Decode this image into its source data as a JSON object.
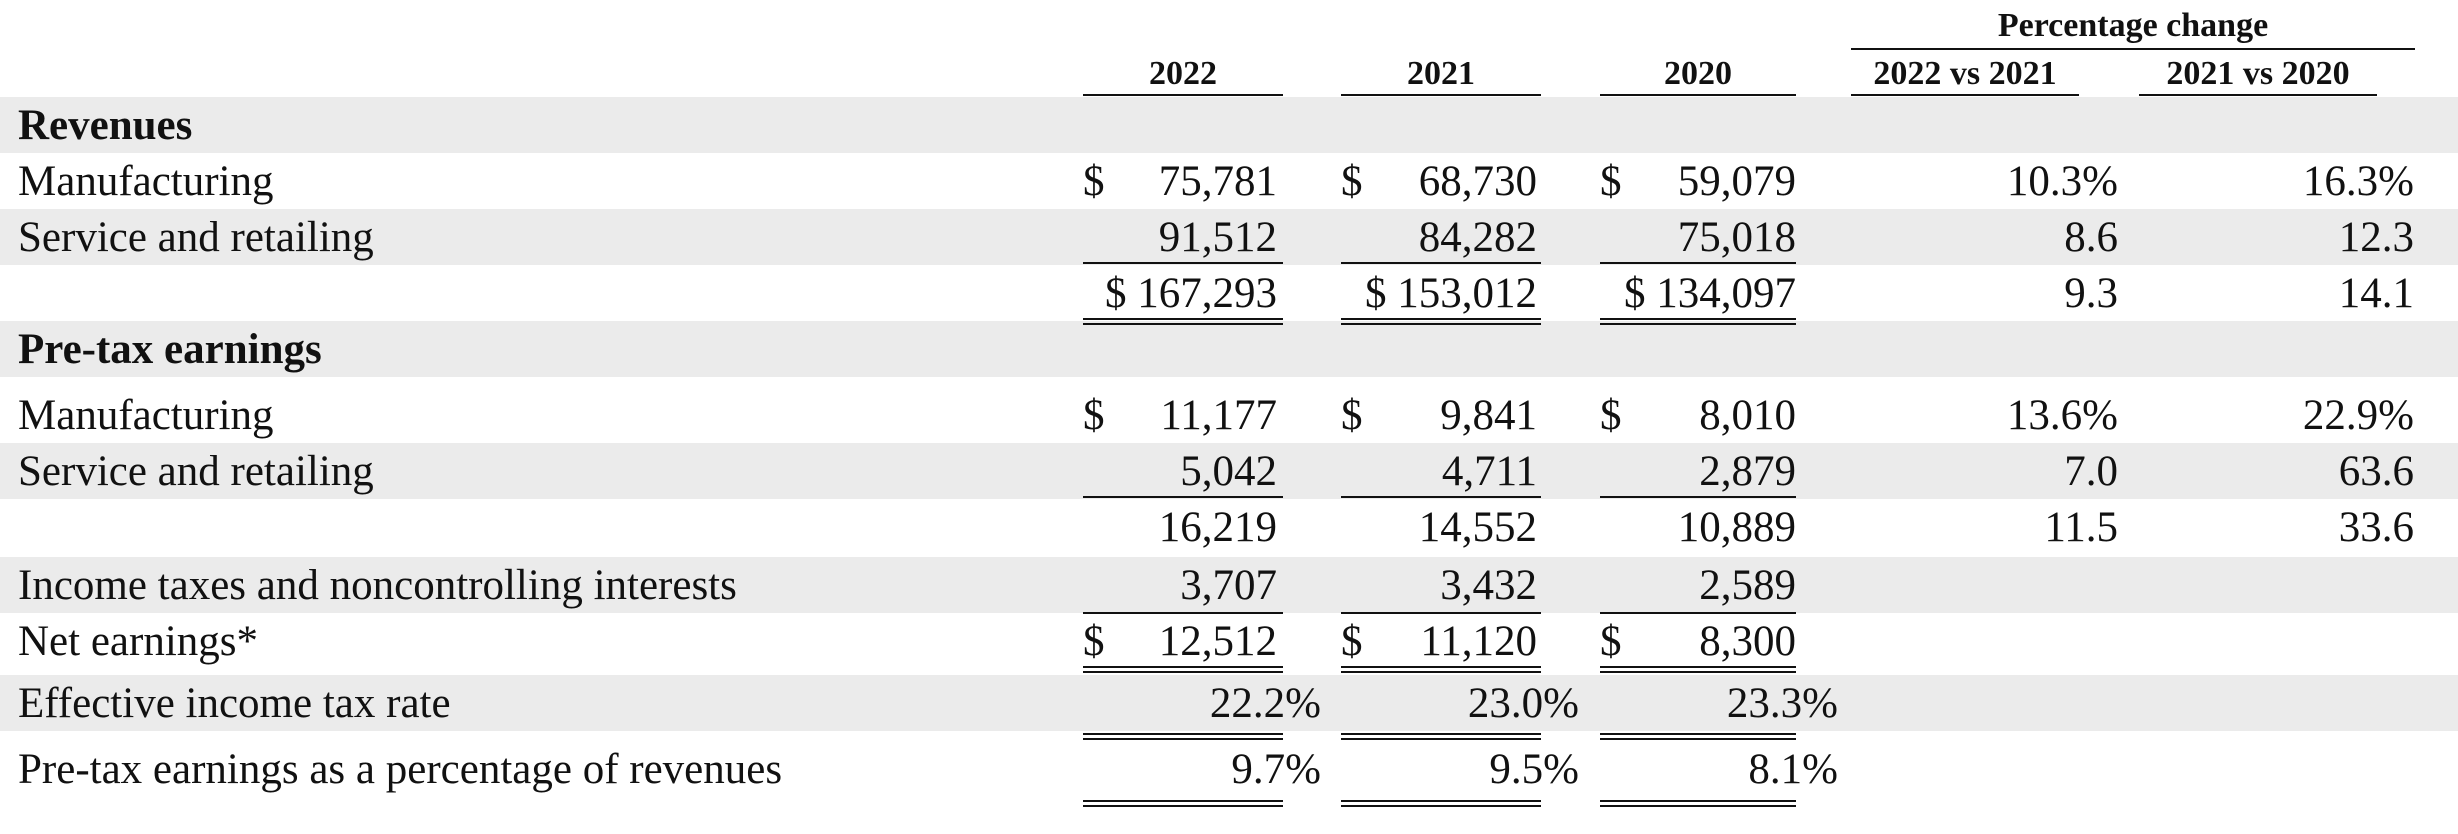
{
  "header": {
    "percentage_change": "Percentage change",
    "years": [
      "2022",
      "2021",
      "2020"
    ],
    "changes": [
      "2022 vs 2021",
      "2021 vs 2020"
    ]
  },
  "rows": [
    {
      "label": "Revenues"
    },
    {
      "label": "Manufacturing",
      "v": [
        "$",
        "75,781",
        "$",
        "68,730",
        "$",
        "59,079"
      ],
      "p": [
        "10.3%",
        "16.3%"
      ]
    },
    {
      "label": "Service and retailing",
      "v": [
        "91,512",
        "84,282",
        "75,018"
      ],
      "p": [
        "8.6",
        "12.3"
      ]
    },
    {
      "v": [
        "$ 167,293",
        "$ 153,012",
        "$ 134,097"
      ],
      "p": [
        "9.3",
        "14.1"
      ]
    },
    {
      "label": "Pre-tax earnings"
    },
    {
      "label": "Manufacturing",
      "v": [
        "$",
        "11,177",
        "$",
        "9,841",
        "$",
        "8,010"
      ],
      "p": [
        "13.6%",
        "22.9%"
      ]
    },
    {
      "label": "Service and retailing",
      "v": [
        "5,042",
        "4,711",
        "2,879"
      ],
      "p": [
        "7.0",
        "63.6"
      ]
    },
    {
      "v": [
        "16,219",
        "14,552",
        "10,889"
      ],
      "p": [
        "11.5",
        "33.6"
      ]
    },
    {
      "label": "Income taxes and noncontrolling interests",
      "v": [
        "3,707",
        "3,432",
        "2,589"
      ]
    },
    {
      "label": "Net earnings*",
      "v": [
        "$",
        "12,512",
        "$",
        "11,120",
        "$",
        "8,300"
      ]
    },
    {
      "label": "Effective income tax rate",
      "v": [
        "22.2%",
        "23.0%",
        "23.3%"
      ]
    },
    {
      "label": "Pre-tax earnings as a percentage of revenues",
      "v": [
        "9.7%",
        "9.5%",
        "8.1%"
      ]
    }
  ]
}
